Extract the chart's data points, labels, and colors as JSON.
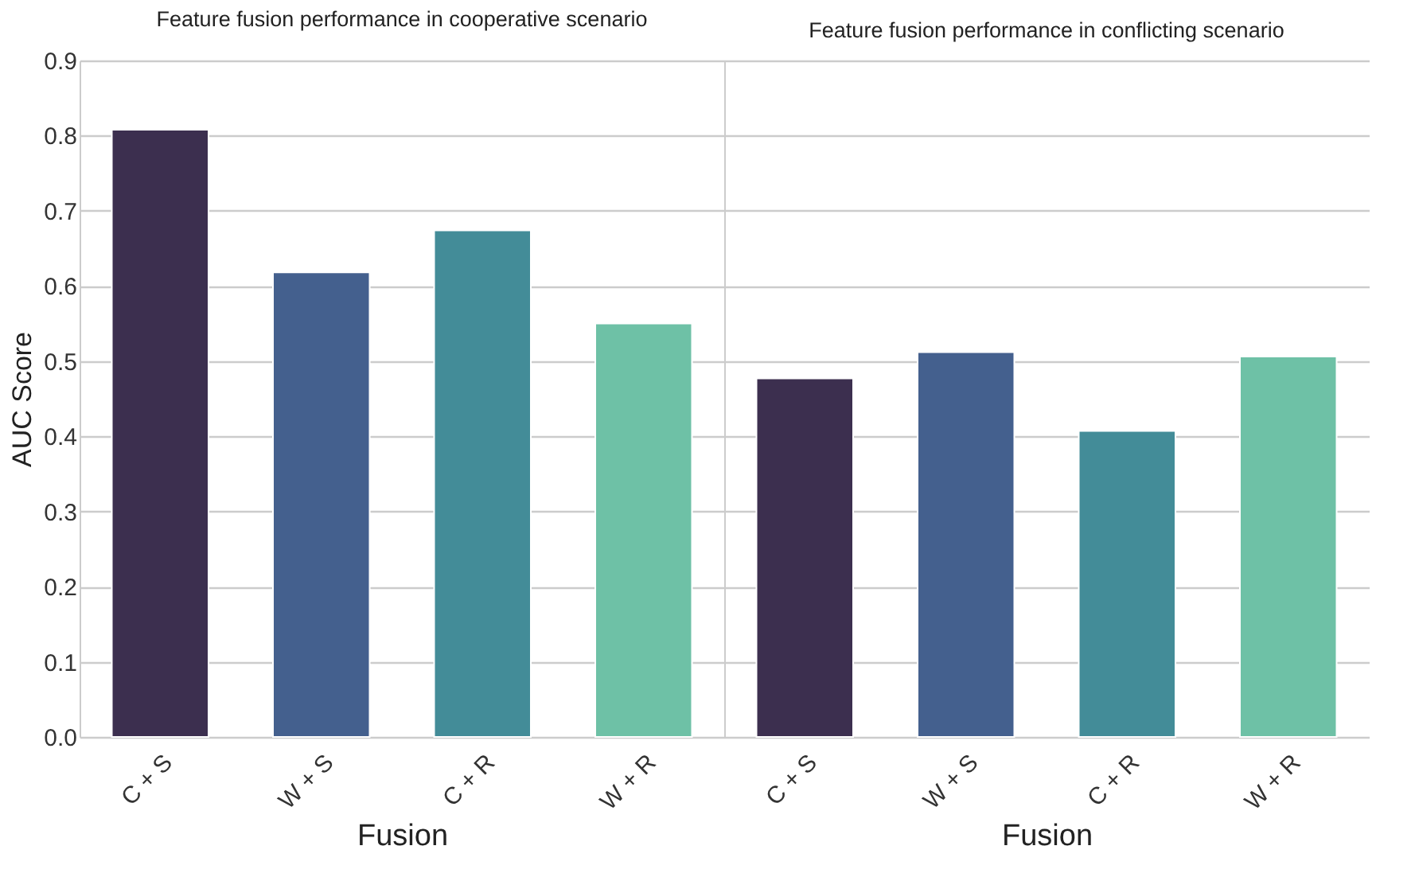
{
  "chart_data": [
    {
      "type": "bar",
      "title": "Feature fusion performance in cooperative scenario",
      "xlabel": "Fusion",
      "ylabel": "AUC Score",
      "categories": [
        "C + S",
        "W + S",
        "C + R",
        "W + R"
      ],
      "values": [
        0.808,
        0.618,
        0.674,
        0.55
      ],
      "colors": [
        "#3c2f4f",
        "#44608e",
        "#438c98",
        "#6ec1a6"
      ],
      "ylim": [
        0,
        0.9
      ],
      "yticks": [
        {
          "value": 0,
          "label": "0.0"
        },
        0.1,
        0.2,
        0.3,
        0.4,
        0.5,
        0.6,
        0.7,
        0.8,
        0.9
      ],
      "grid": "y"
    },
    {
      "type": "bar",
      "title": "Feature fusion performance in conflicting scenario",
      "xlabel": "Fusion",
      "categories": [
        "C + S",
        "W + S",
        "C + R",
        "W + R"
      ],
      "values": [
        0.477,
        0.512,
        0.407,
        0.506
      ],
      "colors": [
        "#3c2f4f",
        "#44608e",
        "#438c98",
        "#6ec1a6"
      ],
      "ylim": [
        0,
        0.9
      ],
      "yticks": [
        0,
        0.1,
        0.2,
        0.3,
        0.4,
        0.5,
        0.6,
        0.7,
        0.8,
        0.9
      ],
      "grid": "y",
      "tick_labels": "x"
    }
  ]
}
